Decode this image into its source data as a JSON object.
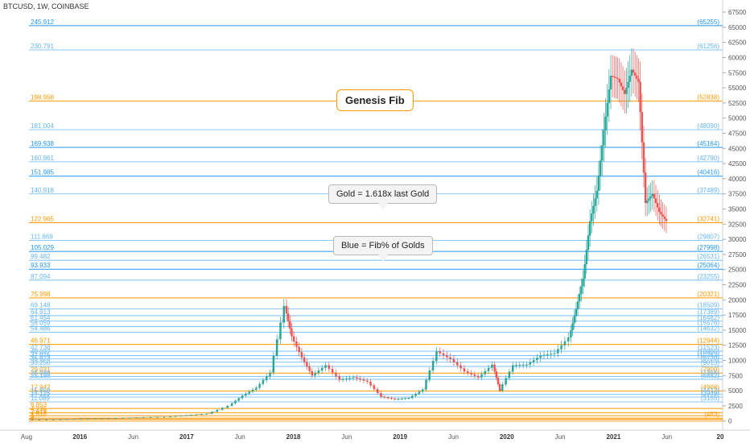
{
  "symbol_label": "BTCUSD, 1W, COINBASE",
  "annotations": {
    "genesis": "Genesis Fib",
    "gold": "Gold = 1.618x last Gold",
    "blue": "Blue = Fib% of Golds"
  },
  "colors": {
    "gold": "#ff9800",
    "blue": "#2196f3",
    "lightblue": "#64b5f6",
    "up": "#26a69a",
    "down": "#ef5350",
    "grid": "#e6e6e6"
  },
  "chart_data": {
    "type": "candlestick",
    "x_ticks": [
      "Aug",
      "2016",
      "Jun",
      "2017",
      "Jun",
      "2018",
      "Jun",
      "2019",
      "Jun",
      "2020",
      "Jun",
      "2021",
      "Jun",
      "20"
    ],
    "y_ticks": [
      "67500",
      "65000",
      "62500",
      "60000",
      "57500",
      "55000",
      "52500",
      "50000",
      "47500",
      "45000",
      "42500",
      "40000",
      "37500",
      "35000",
      "32500",
      "30000",
      "27500",
      "25000",
      "22500",
      "20000",
      "17500",
      "15000",
      "12500",
      "10000",
      "7500",
      "5000",
      "2500",
      "0"
    ],
    "ylim": [
      -1500,
      69500
    ],
    "fib_levels": [
      {
        "left": "245.912",
        "right": "(65255)",
        "value": 65255,
        "kind": "blue"
      },
      {
        "left": "230.791",
        "right": "(61256)",
        "value": 61256,
        "kind": "lightblue"
      },
      {
        "left": "198.958",
        "right": "(52838)",
        "value": 52838,
        "kind": "gold"
      },
      {
        "left": "181.004",
        "right": "(48090)",
        "value": 48090,
        "kind": "lightblue"
      },
      {
        "left": "169.938",
        "right": "(45164)",
        "value": 45164,
        "kind": "blue"
      },
      {
        "left": "160.961",
        "right": "(42790)",
        "value": 42790,
        "kind": "lightblue"
      },
      {
        "left": "151.985",
        "right": "(40416)",
        "value": 40416,
        "kind": "blue"
      },
      {
        "left": "140.918",
        "right": "(37489)",
        "value": 37489,
        "kind": "lightblue"
      },
      {
        "left": "122.965",
        "right": "(32741)",
        "value": 32741,
        "kind": "gold"
      },
      {
        "left": "111.869",
        "right": "(29807)",
        "value": 29807,
        "kind": "lightblue"
      },
      {
        "left": "105.029",
        "right": "(27998)",
        "value": 27998,
        "kind": "blue"
      },
      {
        "left": "99.482",
        "right": "(26531)",
        "value": 26531,
        "kind": "lightblue"
      },
      {
        "left": "93.933",
        "right": "(25064)",
        "value": 25064,
        "kind": "blue"
      },
      {
        "left": "87.094",
        "right": "(23255)",
        "value": 23255,
        "kind": "lightblue"
      },
      {
        "left": "75.998",
        "right": "(20321)",
        "value": 20321,
        "kind": "gold"
      },
      {
        "left": "69.148",
        "right": "(18509)",
        "value": 18509,
        "kind": "lightblue"
      },
      {
        "left": "64.913",
        "right": "(17389)",
        "value": 17389,
        "kind": "lightblue"
      },
      {
        "left": "61.454",
        "right": "(16482)",
        "value": 16482,
        "kind": "lightblue"
      },
      {
        "left": "58.059",
        "right": "(15576)",
        "value": 15576,
        "kind": "lightblue"
      },
      {
        "left": "54.486",
        "right": "(14632)",
        "value": 14632,
        "kind": "lightblue"
      },
      {
        "left": "46.971",
        "right": "(12644)",
        "value": 12644,
        "kind": "gold"
      },
      {
        "left": "42.736",
        "right": "(11523)",
        "value": 11523,
        "kind": "lightblue"
      },
      {
        "left": "40.027",
        "right": "(10806)",
        "value": 10806,
        "kind": "lightblue"
      },
      {
        "left": "37.975",
        "right": "(10263)",
        "value": 10263,
        "kind": "lightblue"
      },
      {
        "left": "35.923",
        "right": "(9720)",
        "value": 9720,
        "kind": "lightblue"
      },
      {
        "left": "33.250",
        "right": "(9013)",
        "value": 9013,
        "kind": "lightblue"
      },
      {
        "left": "29.031",
        "right": "(7900)",
        "value": 7900,
        "kind": "gold"
      },
      {
        "left": "26.986",
        "right": "(7356)",
        "value": 7356,
        "kind": "lightblue"
      },
      {
        "left": "25.198",
        "right": "(6882)",
        "value": 6882,
        "kind": "lightblue"
      },
      {
        "left": "17.942",
        "right": "(4968)",
        "value": 4968,
        "kind": "gold"
      },
      {
        "left": "15.859",
        "right": "(4412)",
        "value": 4412,
        "kind": "lightblue"
      },
      {
        "left": "14.125",
        "right": "(3949)",
        "value": 3949,
        "kind": "lightblue"
      },
      {
        "left": "11.089",
        "right": "(3155)",
        "value": 3155,
        "kind": "lightblue"
      },
      {
        "left": "6.853",
        "right": "",
        "value": 2080,
        "kind": "gold"
      },
      {
        "left": "4.236",
        "right": "",
        "value": 1380,
        "kind": "gold"
      },
      {
        "left": "2.618",
        "right": "",
        "value": 880,
        "kind": "gold"
      },
      {
        "left": "1.618",
        "right": "(483)",
        "value": 483,
        "kind": "gold"
      },
      {
        "left": "1",
        "right": "",
        "value": 300,
        "kind": "gold"
      },
      {
        "left": "0",
        "right": "",
        "value": 0,
        "kind": "gold"
      }
    ],
    "series": [
      {
        "t": 0.0,
        "close": 250
      },
      {
        "t": 0.04,
        "close": 270
      },
      {
        "t": 0.08,
        "close": 390
      },
      {
        "t": 0.12,
        "close": 420
      },
      {
        "t": 0.16,
        "close": 600
      },
      {
        "t": 0.2,
        "close": 700
      },
      {
        "t": 0.23,
        "close": 950
      },
      {
        "t": 0.26,
        "close": 1200
      },
      {
        "t": 0.29,
        "close": 2500
      },
      {
        "t": 0.31,
        "close": 4200
      },
      {
        "t": 0.33,
        "close": 5500
      },
      {
        "t": 0.35,
        "close": 8000
      },
      {
        "t": 0.37,
        "close": 19000
      },
      {
        "t": 0.38,
        "close": 14000
      },
      {
        "t": 0.395,
        "close": 10500
      },
      {
        "t": 0.41,
        "close": 7500
      },
      {
        "t": 0.43,
        "close": 9200
      },
      {
        "t": 0.45,
        "close": 6800
      },
      {
        "t": 0.47,
        "close": 7200
      },
      {
        "t": 0.49,
        "close": 6500
      },
      {
        "t": 0.51,
        "close": 4000
      },
      {
        "t": 0.53,
        "close": 3600
      },
      {
        "t": 0.55,
        "close": 3800
      },
      {
        "t": 0.57,
        "close": 5200
      },
      {
        "t": 0.59,
        "close": 11500
      },
      {
        "t": 0.61,
        "close": 10200
      },
      {
        "t": 0.63,
        "close": 8200
      },
      {
        "t": 0.65,
        "close": 7200
      },
      {
        "t": 0.67,
        "close": 9300
      },
      {
        "t": 0.68,
        "close": 5000
      },
      {
        "t": 0.7,
        "close": 9200
      },
      {
        "t": 0.72,
        "close": 9300
      },
      {
        "t": 0.74,
        "close": 10800
      },
      {
        "t": 0.76,
        "close": 11200
      },
      {
        "t": 0.78,
        "close": 13800
      },
      {
        "t": 0.79,
        "close": 18500
      },
      {
        "t": 0.8,
        "close": 23500
      },
      {
        "t": 0.81,
        "close": 33000
      },
      {
        "t": 0.82,
        "close": 38000
      },
      {
        "t": 0.83,
        "close": 48000
      },
      {
        "t": 0.84,
        "close": 57000
      },
      {
        "t": 0.85,
        "close": 56500
      },
      {
        "t": 0.86,
        "close": 54000
      },
      {
        "t": 0.87,
        "close": 58000
      },
      {
        "t": 0.88,
        "close": 56000
      },
      {
        "t": 0.89,
        "close": 36000
      },
      {
        "t": 0.9,
        "close": 37500
      },
      {
        "t": 0.91,
        "close": 34500
      },
      {
        "t": 0.92,
        "close": 33000
      }
    ]
  }
}
